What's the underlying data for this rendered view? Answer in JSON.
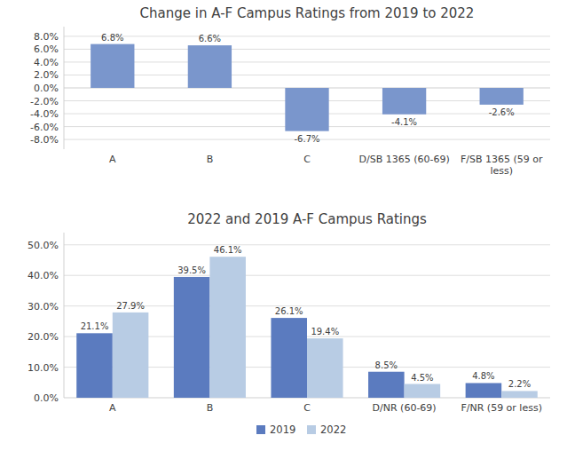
{
  "chart_data": [
    {
      "type": "bar",
      "title": "Change in A-F Campus Ratings from 2019 to 2022",
      "categories": [
        "A",
        "B",
        "C",
        "D/SB 1365 (60-69)",
        "F/SB 1365 (59 or\nless)"
      ],
      "values": [
        6.8,
        6.6,
        -6.7,
        -4.1,
        -2.6
      ],
      "value_labels": [
        "6.8%",
        "6.6%",
        "-6.7%",
        "-4.1%",
        "-2.6%"
      ],
      "color": "#7a96cc",
      "ylim": [
        -9.5,
        9.5
      ],
      "yticks": [
        {
          "value": -8.0,
          "label": "-8.0%"
        },
        {
          "value": -6.0,
          "label": "-6.0%"
        },
        {
          "value": -4.0,
          "label": "-4.0%"
        },
        {
          "value": -2.0,
          "label": "-2.0%"
        },
        {
          "value": 0.0,
          "label": "0.0%"
        },
        {
          "value": 2.0,
          "label": "2.0%"
        },
        {
          "value": 4.0,
          "label": "4.0%"
        },
        {
          "value": 6.0,
          "label": "6.0%"
        },
        {
          "value": 8.0,
          "label": "8.0%"
        }
      ],
      "grid": true,
      "data_labels": true
    },
    {
      "type": "bar",
      "title": "2022 and 2019 A-F Campus Ratings",
      "categories": [
        "A",
        "B",
        "C",
        "D/NR (60-69)",
        "F/NR (59 or less)"
      ],
      "series": [
        {
          "name": "2019",
          "color": "#5b7bbf",
          "values": [
            21.1,
            39.5,
            26.1,
            8.5,
            4.8
          ],
          "value_labels": [
            "21.1%",
            "39.5%",
            "26.1%",
            "8.5%",
            "4.8%"
          ]
        },
        {
          "name": "2022",
          "color": "#b8cce4",
          "values": [
            27.9,
            46.1,
            19.4,
            4.5,
            2.2
          ],
          "value_labels": [
            "27.9%",
            "46.1%",
            "19.4%",
            "4.5%",
            "2.2%"
          ]
        }
      ],
      "ylim": [
        0,
        54
      ],
      "yticks": [
        {
          "value": 0.0,
          "label": "0.0%"
        },
        {
          "value": 10.0,
          "label": "10.0%"
        },
        {
          "value": 20.0,
          "label": "20.0%"
        },
        {
          "value": 30.0,
          "label": "30.0%"
        },
        {
          "value": 40.0,
          "label": "40.0%"
        },
        {
          "value": 50.0,
          "label": "50.0%"
        }
      ],
      "grid": true,
      "data_labels": true,
      "legend": "bottom"
    }
  ]
}
